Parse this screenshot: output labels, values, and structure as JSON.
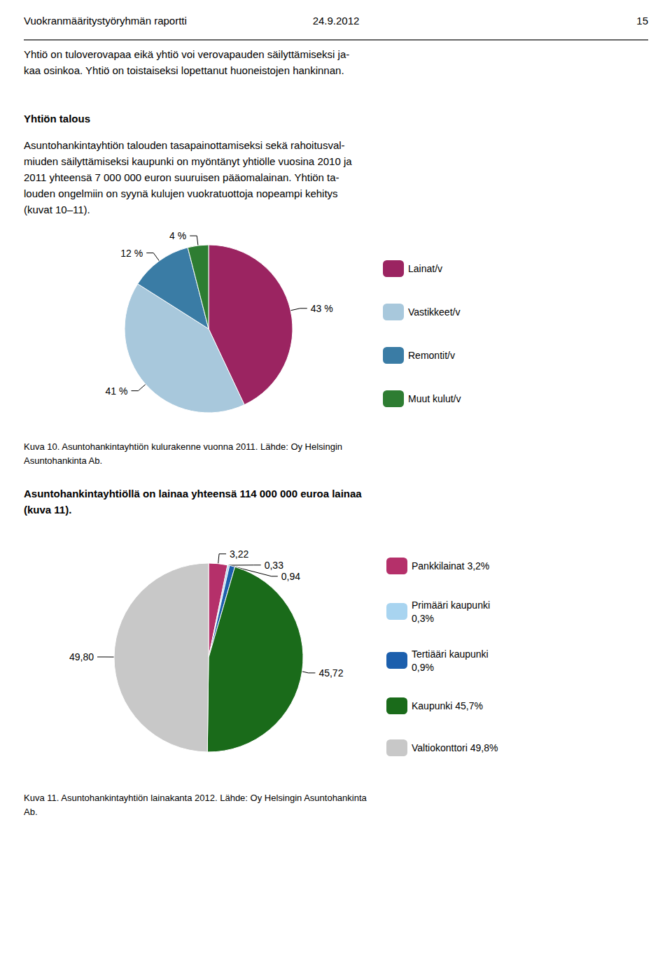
{
  "chart_data": [
    {
      "type": "pie",
      "title": "Kuva 10. Asuntohankintayhtiön kulurakenne vuonna 2011. Lähde: Oy Helsingin\nAsuntohankinta Ab.",
      "annotations": [
        "Vuokranmääritystyöryhmän raportti",
        "24.9.2012",
        "15",
        "Yhtiö on tuloverovapaa eikä yhtiö voi verovapauden säilyttämiseksi ja-\nkaa osinkoa. Yhtiö on toistaiseksi lopettanut huoneistojen hankinnan.",
        "Yhtiön talous",
        "Asuntohankintayhtiön talouden tasapainottamiseksi sekä rahoitusval-\nmiuden säilyttämiseksi kaupunki on myöntänyt yhtiölle vuosina 2010 ja\n2011 yhteensä 7 000 000 euron suuruisen pääomalainan. Yhtiön ta-\nlouden ongelmiin on syynä kulujen vuokratuottoja nopeampi kehitys\n(kuvat 10–11)."
      ],
      "categories": [
        "Lainat/v",
        "Vastikkeet/v",
        "Remontit/v",
        "Muut kulut/v"
      ],
      "values": [
        43,
        41,
        12,
        4
      ],
      "value_labels": [
        "43 %",
        "41 %",
        "12 %",
        "4 %"
      ],
      "colors": [
        "#9B2461",
        "#A8C8DC",
        "#3A7CA5",
        "#2E7D32"
      ],
      "data_labels": true,
      "legend": "right"
    },
    {
      "type": "pie",
      "title": "Kuva 11. Asuntohankintayhtiön lainakanta 2012. Lähde: Oy Helsingin Asuntohankinta\nAb.",
      "annotations": [
        "Asuntohankintayhtiöllä on lainaa yhteensä 114 000 000 euroa lainaa\n(kuva 11)."
      ],
      "categories": [
        "Pankkilainat 3,2%",
        "Primääri kaupunki\n0,3%",
        "Tertiääri kaupunki\n0,9%",
        "Kaupunki 45,7%",
        "Valtiokonttori 49,8%"
      ],
      "values": [
        3.22,
        0.33,
        0.94,
        45.72,
        49.8
      ],
      "value_labels": [
        "3,22",
        "0,33",
        "0,94",
        "45,72",
        "49,80"
      ],
      "colors": [
        "#B5306A",
        "#A8D4F0",
        "#1C5FAD",
        "#1A6B1A",
        "#C8C8C8"
      ],
      "data_labels": true,
      "legend": "right"
    }
  ]
}
